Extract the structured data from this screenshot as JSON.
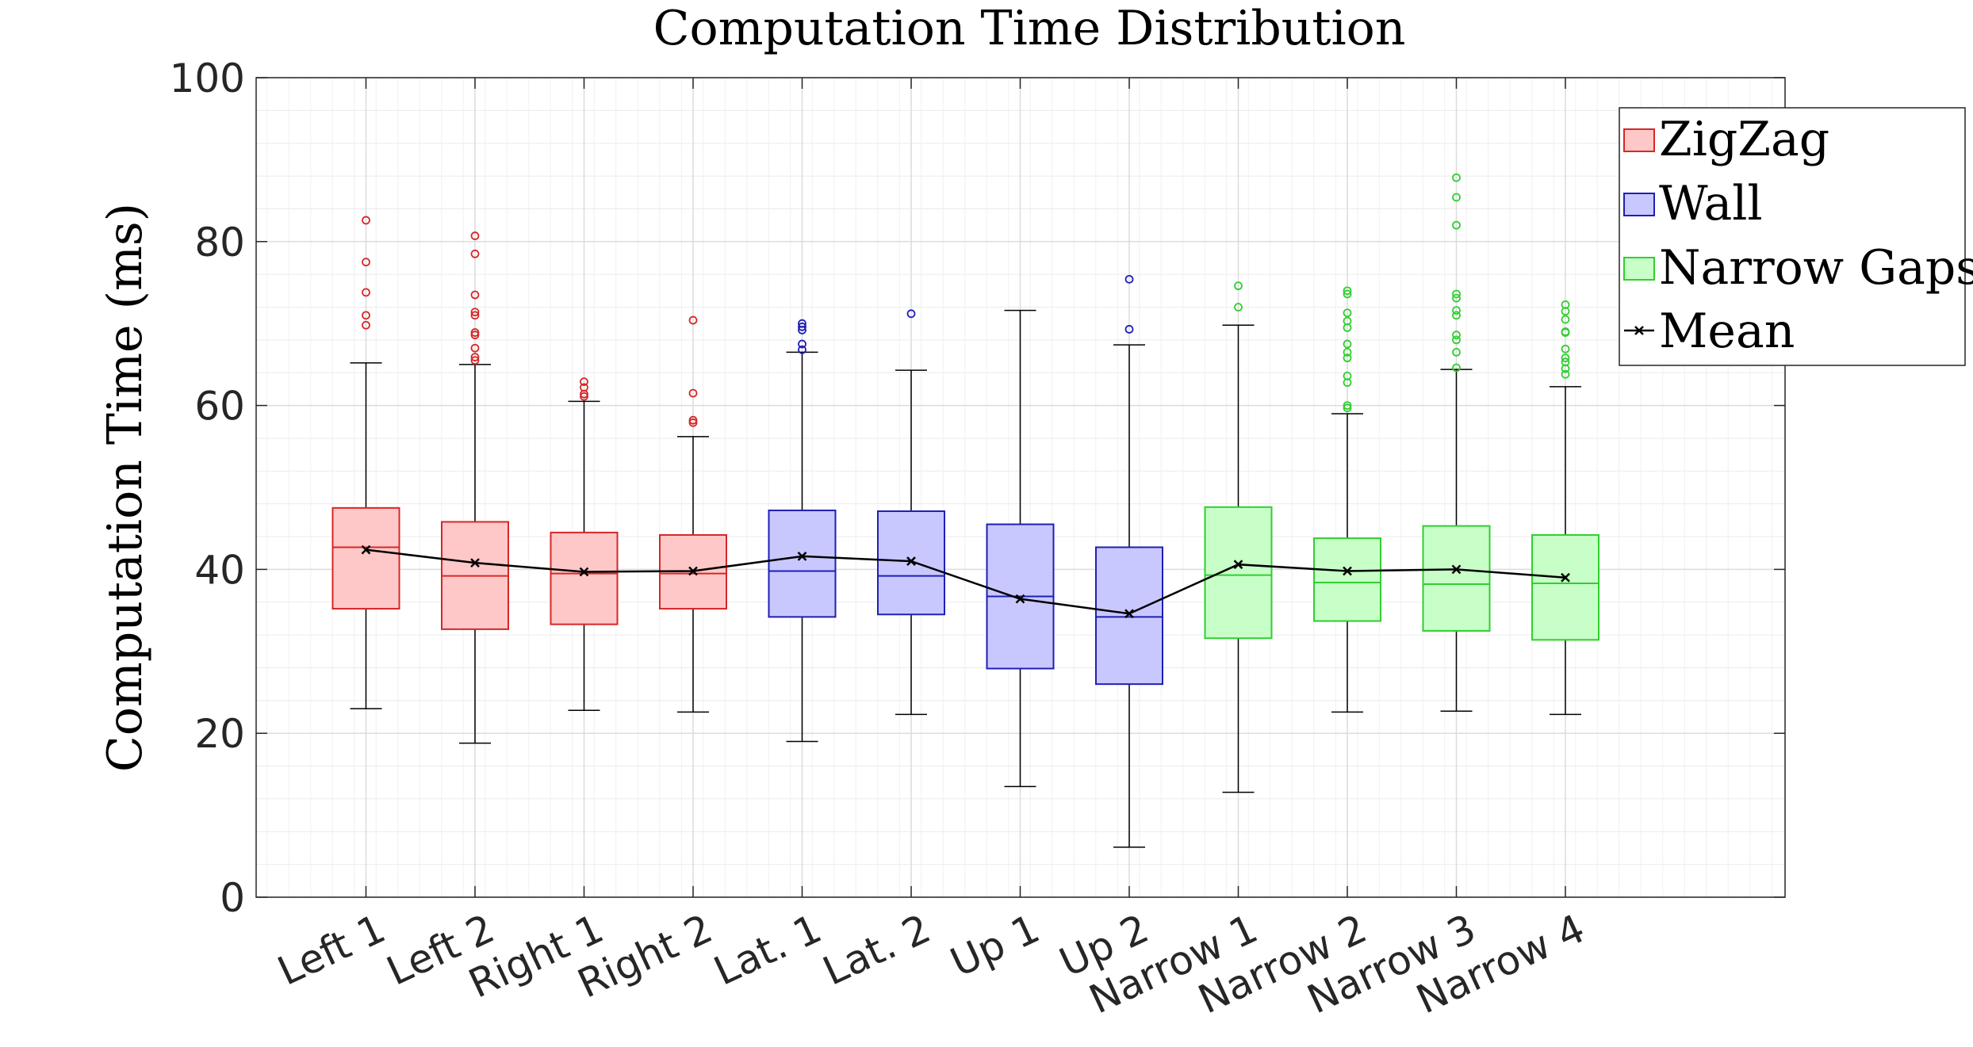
{
  "chart_data": {
    "type": "box",
    "title": "Computation Time Distribution",
    "xlabel": "",
    "ylabel": "Computation Time (ms)",
    "ylim": [
      0,
      100
    ],
    "yticks": [
      0,
      20,
      40,
      60,
      80,
      100
    ],
    "grid": true,
    "minor_grid": true,
    "legend_position": "top-right",
    "categories": [
      "Left 1",
      "Left 2",
      "Right 1",
      "Right 2",
      "Lat. 1",
      "Lat. 2",
      "Up 1",
      "Up 2",
      "Narrow 1",
      "Narrow 2",
      "Narrow 3",
      "Narrow 4"
    ],
    "groups": [
      {
        "name": "ZigZag",
        "edge_color": "#d62728",
        "fill_color": "#ffc8c8",
        "categories": [
          "Left 1",
          "Left 2",
          "Right 1",
          "Right 2"
        ]
      },
      {
        "name": "Wall",
        "edge_color": "#1f1fb4",
        "fill_color": "#c8c8ff",
        "categories": [
          "Lat. 1",
          "Lat. 2",
          "Up 1",
          "Up 2"
        ]
      },
      {
        "name": "Narrow Gaps",
        "edge_color": "#2fcf2f",
        "fill_color": "#c8ffc8",
        "categories": [
          "Narrow 1",
          "Narrow 2",
          "Narrow 3",
          "Narrow 4"
        ]
      }
    ],
    "boxes": [
      {
        "category": "Left 1",
        "group": "ZigZag",
        "whisker_low": 23.0,
        "q1": 35.2,
        "median": 42.7,
        "q3": 47.5,
        "whisker_high": 65.2,
        "outliers": [
          69.8,
          71.0,
          73.8,
          77.5,
          82.6
        ]
      },
      {
        "category": "Left 2",
        "group": "ZigZag",
        "whisker_low": 18.8,
        "q1": 32.7,
        "median": 39.2,
        "q3": 45.8,
        "whisker_high": 65.0,
        "outliers": [
          65.5,
          65.9,
          67.0,
          68.6,
          68.9,
          71.0,
          71.4,
          73.5,
          78.5,
          80.7
        ]
      },
      {
        "category": "Right 1",
        "group": "ZigZag",
        "whisker_low": 22.8,
        "q1": 33.3,
        "median": 39.5,
        "q3": 44.5,
        "whisker_high": 60.5,
        "outliers": [
          61.1,
          61.4,
          62.2,
          62.9
        ]
      },
      {
        "category": "Right 2",
        "group": "ZigZag",
        "whisker_low": 22.6,
        "q1": 35.2,
        "median": 39.5,
        "q3": 44.2,
        "whisker_high": 56.2,
        "outliers": [
          57.9,
          58.2,
          61.5,
          70.4
        ]
      },
      {
        "category": "Lat. 1",
        "group": "Wall",
        "whisker_low": 19.0,
        "q1": 34.2,
        "median": 39.8,
        "q3": 47.2,
        "whisker_high": 66.5,
        "outliers": [
          66.8,
          67.5,
          69.2,
          69.6,
          70.0
        ]
      },
      {
        "category": "Lat. 2",
        "group": "Wall",
        "whisker_low": 22.3,
        "q1": 34.5,
        "median": 39.2,
        "q3": 47.1,
        "whisker_high": 64.3,
        "outliers": [
          71.2
        ]
      },
      {
        "category": "Up 1",
        "group": "Wall",
        "whisker_low": 13.5,
        "q1": 27.9,
        "median": 36.7,
        "q3": 45.5,
        "whisker_high": 71.6,
        "outliers": []
      },
      {
        "category": "Up 2",
        "group": "Wall",
        "whisker_low": 6.1,
        "q1": 26.0,
        "median": 34.2,
        "q3": 42.7,
        "whisker_high": 67.4,
        "outliers": [
          69.3,
          75.4
        ]
      },
      {
        "category": "Narrow 1",
        "group": "Narrow Gaps",
        "whisker_low": 12.8,
        "q1": 31.6,
        "median": 39.3,
        "q3": 47.6,
        "whisker_high": 69.8,
        "outliers": [
          72.0,
          74.6
        ]
      },
      {
        "category": "Narrow 2",
        "group": "Narrow Gaps",
        "whisker_low": 22.6,
        "q1": 33.7,
        "median": 38.4,
        "q3": 43.8,
        "whisker_high": 59.0,
        "outliers": [
          59.7,
          60.0,
          62.8,
          63.6,
          65.8,
          66.5,
          67.5,
          69.5,
          70.3,
          71.3,
          73.6,
          74.0
        ]
      },
      {
        "category": "Narrow 3",
        "group": "Narrow Gaps",
        "whisker_low": 22.7,
        "q1": 32.5,
        "median": 38.2,
        "q3": 45.3,
        "whisker_high": 64.4,
        "outliers": [
          64.6,
          66.5,
          68.0,
          68.6,
          71.0,
          71.6,
          73.1,
          73.6,
          82.0,
          85.4,
          87.8
        ]
      },
      {
        "category": "Narrow 4",
        "group": "Narrow Gaps",
        "whisker_low": 22.3,
        "q1": 31.4,
        "median": 38.3,
        "q3": 44.2,
        "whisker_high": 62.3,
        "outliers": [
          63.8,
          64.5,
          65.3,
          65.8,
          66.9,
          68.9,
          69.0,
          70.5,
          71.5,
          72.3
        ]
      }
    ],
    "mean_series": {
      "name": "Mean",
      "marker": "x",
      "color": "#000000",
      "values": [
        42.4,
        40.8,
        39.7,
        39.8,
        41.6,
        41.0,
        36.4,
        34.6,
        40.6,
        39.8,
        40.0,
        39.0
      ]
    },
    "legend": [
      "ZigZag",
      "Wall",
      "Narrow Gaps",
      "Mean"
    ]
  }
}
